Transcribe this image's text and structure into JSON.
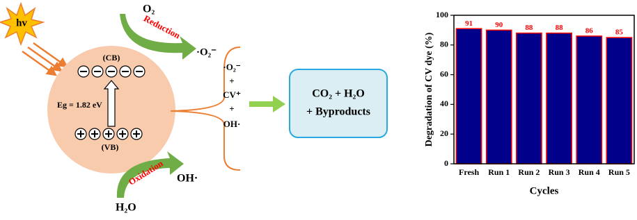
{
  "diagram": {
    "light": "hv",
    "oxygen": "O₂",
    "reduction": "Reduction",
    "superoxide": "·O₂⁻",
    "cb": "(CB)",
    "band_gap": "Eg = 1.82 eV",
    "vb": "(VB)",
    "oxidation": "Oxidation",
    "hydroxyl": "OH·",
    "water": "H₂O",
    "species": [
      "·O₂⁻",
      "+",
      "CV⁺",
      "+",
      "OH·"
    ],
    "products": [
      "CO₂ +  H₂O",
      "+ Byproducts"
    ]
  },
  "chart_data": {
    "type": "bar",
    "categories": [
      "Fresh",
      "Run 1",
      "Run 2",
      "Run 3",
      "Run 4",
      "Run 5"
    ],
    "values": [
      91,
      90,
      88,
      88,
      86,
      85
    ],
    "color": "#00008b",
    "edge_color": "#ff0000",
    "label_color": "#ff0000",
    "ylim": [
      0,
      100
    ],
    "yticks": [
      0,
      20,
      40,
      60,
      80,
      100
    ],
    "xlabel": "Cycles",
    "ylabel": "Degradation of CV dye (%)"
  }
}
